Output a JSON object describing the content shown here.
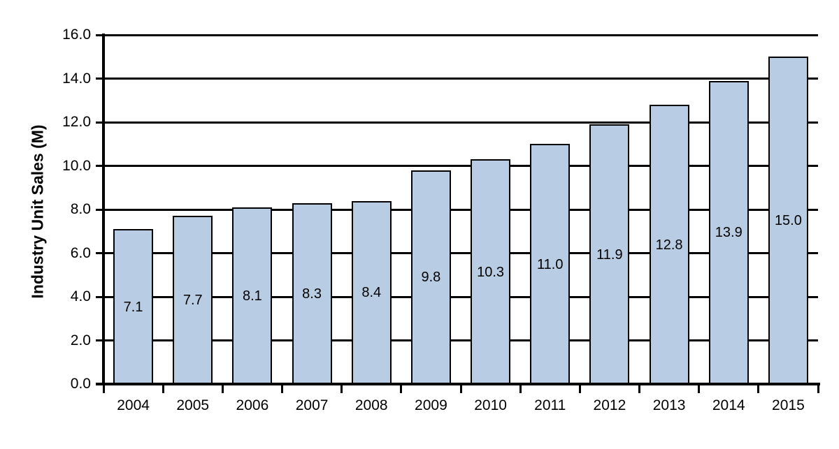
{
  "chart_data": {
    "type": "bar",
    "title": "",
    "ylabel": "Industry Unit Sales (M)",
    "xlabel": "",
    "categories": [
      "2004",
      "2005",
      "2006",
      "2007",
      "2008",
      "2009",
      "2010",
      "2011",
      "2012",
      "2013",
      "2014",
      "2015"
    ],
    "values": [
      7.1,
      7.7,
      8.1,
      8.3,
      8.4,
      9.8,
      10.3,
      11.0,
      11.9,
      12.8,
      13.9,
      15.0
    ],
    "bar_labels": [
      "7.1",
      "7.7",
      "8.1",
      "8.3",
      "8.4",
      "9.8",
      "10.3",
      "11.0",
      "11.9",
      "12.8",
      "13.9",
      "15.0"
    ],
    "ylim": [
      0,
      16
    ],
    "ytick_step": 2,
    "ytick_labels": [
      "0.0",
      "2.0",
      "4.0",
      "6.0",
      "8.0",
      "10.0",
      "12.0",
      "14.0",
      "16.0"
    ],
    "grid": "horizontal",
    "legend": "none",
    "bar_label_position": "center",
    "colors": {
      "bar_fill": "#B8CCE4",
      "bar_border": "#000000",
      "axis": "#000000",
      "grid": "#000000",
      "text": "#000000",
      "background": "#FFFFFF"
    }
  }
}
